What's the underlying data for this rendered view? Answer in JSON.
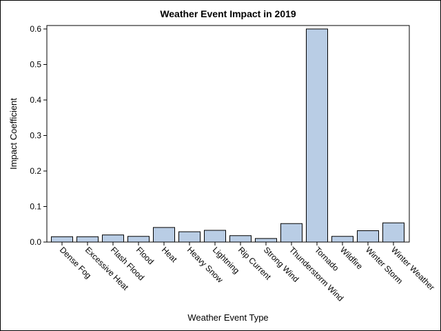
{
  "chart_data": {
    "type": "bar",
    "title": "Weather Event Impact in 2019",
    "xlabel": "Weather Event Type",
    "ylabel": "Impact Coefficient",
    "categories": [
      "Dense Fog",
      "Excessive Heat",
      "Flash Flood",
      "Flood",
      "Heat",
      "Heavy Snow",
      "Lightning",
      "Rip Current",
      "Strong Wind",
      "Thunderstorm Wind",
      "Tornado",
      "Wildfire",
      "Winter Storm",
      "Winter Weather"
    ],
    "values": [
      0.015,
      0.015,
      0.02,
      0.016,
      0.041,
      0.029,
      0.033,
      0.018,
      0.01,
      0.052,
      0.6,
      0.016,
      0.032,
      0.054
    ],
    "ylim": [
      0,
      0.6
    ],
    "yticks": [
      "0.0",
      "0.1",
      "0.2",
      "0.3",
      "0.4",
      "0.5",
      "0.6"
    ],
    "grid": false,
    "legend": "none",
    "colors": {
      "bar_fill": "#b9cde5",
      "bar_stroke": "#000000",
      "axis": "#000000"
    }
  }
}
